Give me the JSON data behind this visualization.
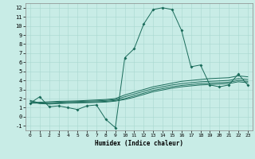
{
  "xlabel": "Humidex (Indice chaleur)",
  "bg_color": "#c8ece6",
  "grid_color": "#a8d8d0",
  "line_color": "#1a6b5a",
  "xlim": [
    -0.5,
    23.5
  ],
  "ylim": [
    -1.5,
    12.5
  ],
  "xticks": [
    0,
    1,
    2,
    3,
    4,
    5,
    6,
    7,
    8,
    9,
    10,
    11,
    12,
    13,
    14,
    15,
    16,
    17,
    18,
    19,
    20,
    21,
    22,
    23
  ],
  "yticks": [
    -1,
    0,
    1,
    2,
    3,
    4,
    5,
    6,
    7,
    8,
    9,
    10,
    11,
    12
  ],
  "series1_x": [
    0,
    1,
    2,
    3,
    4,
    5,
    6,
    7,
    8,
    9,
    10,
    11,
    12,
    13,
    14,
    15,
    16,
    17,
    18,
    19,
    20,
    21,
    22,
    23
  ],
  "series1_y": [
    1.5,
    2.2,
    1.1,
    1.2,
    1.0,
    0.8,
    1.2,
    1.3,
    -0.3,
    -1.2,
    6.5,
    7.5,
    10.2,
    11.8,
    12.0,
    11.8,
    9.5,
    5.5,
    5.7,
    3.5,
    3.3,
    3.5,
    4.7,
    3.5
  ],
  "series2_x": [
    0,
    1,
    2,
    3,
    4,
    5,
    6,
    7,
    8,
    9,
    10,
    11,
    12,
    13,
    14,
    15,
    16,
    17,
    18,
    19,
    20,
    21,
    22,
    23
  ],
  "series2_y": [
    1.5,
    1.6,
    1.65,
    1.7,
    1.72,
    1.75,
    1.8,
    1.85,
    1.9,
    2.0,
    2.4,
    2.7,
    3.0,
    3.3,
    3.5,
    3.7,
    3.9,
    4.0,
    4.1,
    4.2,
    4.25,
    4.3,
    4.5,
    4.4
  ],
  "series3_x": [
    0,
    1,
    2,
    3,
    4,
    5,
    6,
    7,
    8,
    9,
    10,
    11,
    12,
    13,
    14,
    15,
    16,
    17,
    18,
    19,
    20,
    21,
    22,
    23
  ],
  "series3_y": [
    1.5,
    1.5,
    1.55,
    1.6,
    1.65,
    1.68,
    1.72,
    1.75,
    1.8,
    1.9,
    2.2,
    2.5,
    2.8,
    3.1,
    3.3,
    3.5,
    3.65,
    3.75,
    3.85,
    3.9,
    3.95,
    4.0,
    4.2,
    4.1
  ],
  "series4_x": [
    0,
    1,
    2,
    3,
    4,
    5,
    6,
    7,
    8,
    9,
    10,
    11,
    12,
    13,
    14,
    15,
    16,
    17,
    18,
    19,
    20,
    21,
    22,
    23
  ],
  "series4_y": [
    1.8,
    1.5,
    1.45,
    1.5,
    1.55,
    1.58,
    1.62,
    1.65,
    1.7,
    1.8,
    2.0,
    2.3,
    2.6,
    2.9,
    3.1,
    3.3,
    3.45,
    3.55,
    3.65,
    3.7,
    3.75,
    3.8,
    4.0,
    3.9
  ],
  "series5_x": [
    0,
    1,
    2,
    3,
    4,
    5,
    6,
    7,
    8,
    9,
    10,
    11,
    12,
    13,
    14,
    15,
    16,
    17,
    18,
    19,
    20,
    21,
    22,
    23
  ],
  "series5_y": [
    1.7,
    1.45,
    1.4,
    1.45,
    1.5,
    1.52,
    1.55,
    1.58,
    1.62,
    1.72,
    1.9,
    2.15,
    2.45,
    2.75,
    2.95,
    3.15,
    3.3,
    3.4,
    3.5,
    3.55,
    3.6,
    3.65,
    3.85,
    3.75
  ]
}
